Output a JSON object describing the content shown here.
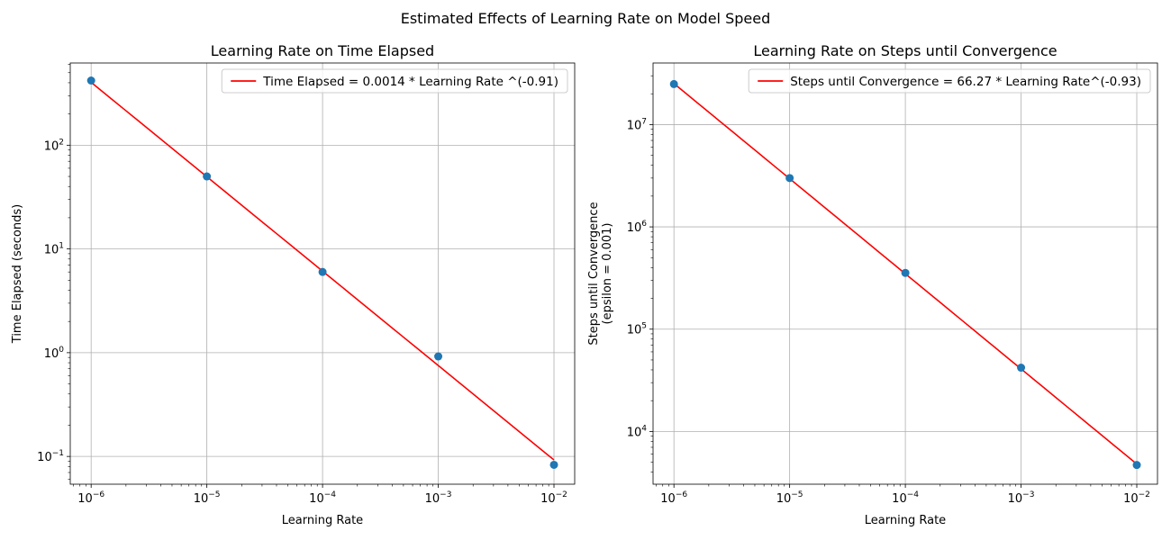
{
  "figure": {
    "suptitle": "Estimated Effects of Learning Rate on Model Speed"
  },
  "colors": {
    "points": "#1f77b4",
    "fit_line": "#ff0000",
    "grid": "#b0b0b0"
  },
  "chart_data": [
    {
      "type": "scatter",
      "title": "Learning Rate on Time Elapsed",
      "xlabel": "Learning Rate",
      "ylabel": "Time Elapsed (seconds)",
      "xscale": "log",
      "yscale": "log",
      "xlim": [
        6.6e-07,
        0.0151
      ],
      "ylim": [
        0.054,
        620
      ],
      "grid": true,
      "legend_position": "upper-right",
      "x_ticks": [
        {
          "base": "10",
          "exp": "−6",
          "value": 1e-06
        },
        {
          "base": "10",
          "exp": "−5",
          "value": 1e-05
        },
        {
          "base": "10",
          "exp": "−4",
          "value": 0.0001
        },
        {
          "base": "10",
          "exp": "−3",
          "value": 0.001
        },
        {
          "base": "10",
          "exp": "−2",
          "value": 0.01
        }
      ],
      "y_ticks": [
        {
          "base": "10",
          "exp": "−1",
          "value": 0.1
        },
        {
          "base": "10",
          "exp": "0",
          "value": 1
        },
        {
          "base": "10",
          "exp": "1",
          "value": 10
        },
        {
          "base": "10",
          "exp": "2",
          "value": 100
        }
      ],
      "points": [
        {
          "x": 1e-06,
          "y": 420
        },
        {
          "x": 1e-05,
          "y": 50
        },
        {
          "x": 0.0001,
          "y": 6
        },
        {
          "x": 0.001,
          "y": 0.92
        },
        {
          "x": 0.01,
          "y": 0.083
        }
      ],
      "fit": {
        "label": "Time Elapsed = 0.0014 * Learning Rate ^(-0.91)",
        "coefficient": 0.0014,
        "exponent": -0.91,
        "x_range": [
          1e-06,
          0.01
        ]
      }
    },
    {
      "type": "scatter",
      "title": "Learning Rate on Steps until Convergence",
      "xlabel": "Learning Rate",
      "ylabel": [
        "Steps until Convergence",
        "(epsilon = 0.001)"
      ],
      "xscale": "log",
      "yscale": "log",
      "xlim": [
        6.6e-07,
        0.0151
      ],
      "ylim": [
        3050,
        40000000
      ],
      "grid": true,
      "legend_position": "upper-right",
      "x_ticks": [
        {
          "base": "10",
          "exp": "−6",
          "value": 1e-06
        },
        {
          "base": "10",
          "exp": "−5",
          "value": 1e-05
        },
        {
          "base": "10",
          "exp": "−4",
          "value": 0.0001
        },
        {
          "base": "10",
          "exp": "−3",
          "value": 0.001
        },
        {
          "base": "10",
          "exp": "−2",
          "value": 0.01
        }
      ],
      "y_ticks": [
        {
          "base": "10",
          "exp": "4",
          "value": 10000
        },
        {
          "base": "10",
          "exp": "5",
          "value": 100000
        },
        {
          "base": "10",
          "exp": "6",
          "value": 1000000
        },
        {
          "base": "10",
          "exp": "7",
          "value": 10000000
        }
      ],
      "points": [
        {
          "x": 1e-06,
          "y": 24900000
        },
        {
          "x": 1e-05,
          "y": 3000000
        },
        {
          "x": 0.0001,
          "y": 355000
        },
        {
          "x": 0.001,
          "y": 42000
        },
        {
          "x": 0.01,
          "y": 4700
        }
      ],
      "fit": {
        "label": "Steps until Convergence = 66.27 * Learning Rate^(-0.93)",
        "coefficient": 66.27,
        "exponent": -0.93,
        "x_range": [
          1e-06,
          0.01
        ]
      }
    }
  ]
}
